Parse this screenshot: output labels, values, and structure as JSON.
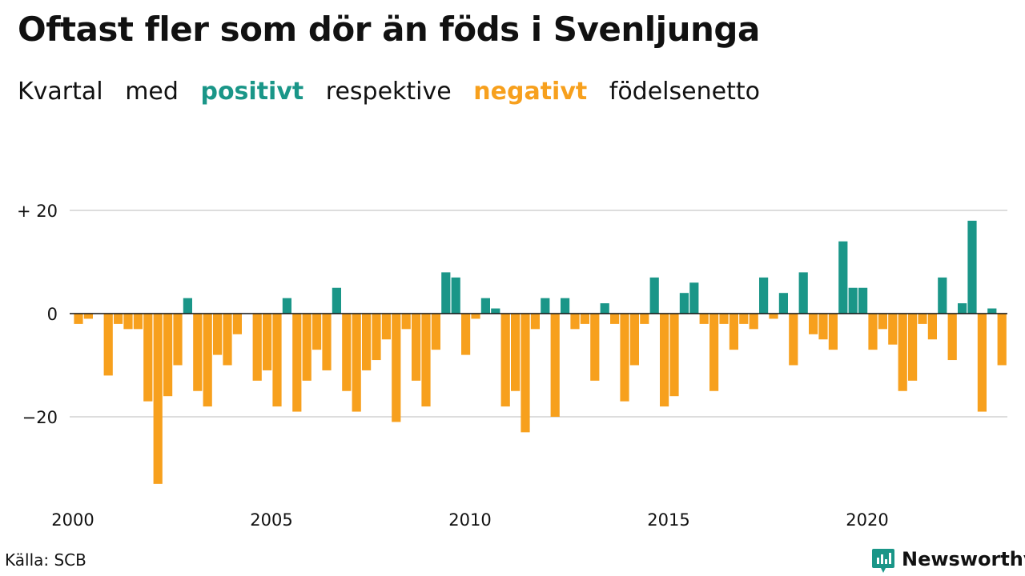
{
  "title": "Oftast fler som dör än föds i Svenljunga",
  "subtitle": {
    "part1": "Kvartal",
    "part2": "med",
    "positive_word": "positivt",
    "part3": "respektive",
    "negative_word": "negativt",
    "part4": "födelsenetto"
  },
  "colors": {
    "positive": "#1a9688",
    "negative": "#f7a01d",
    "grid": "#dddddd",
    "zero_line": "#111111",
    "brand": "#1a9688"
  },
  "source": "Källa: SCB",
  "brand": {
    "name": "Newsworthy",
    "icon": "newsworthy-logo-icon"
  },
  "chart_data": {
    "type": "bar",
    "start_year": 2000,
    "start_quarter": 1,
    "x_tick_labels": [
      "2000",
      "2005",
      "2010",
      "2015",
      "2020"
    ],
    "y_tick_labels": [
      "+ 20",
      "0",
      "−20"
    ],
    "y_ticks": [
      20,
      0,
      -20
    ],
    "ylim": [
      -35,
      22
    ],
    "grid": true,
    "values": [
      -2,
      -1,
      0,
      -12,
      -2,
      -3,
      -3,
      -17,
      -33,
      -16,
      -10,
      3,
      -15,
      -18,
      -8,
      -10,
      -4,
      0,
      -13,
      -11,
      -18,
      3,
      -19,
      -13,
      -7,
      -11,
      5,
      -15,
      -19,
      -11,
      -9,
      -5,
      -21,
      -3,
      -13,
      -18,
      -7,
      8,
      7,
      -8,
      -1,
      3,
      1,
      -18,
      -15,
      -23,
      -3,
      3,
      -20,
      3,
      -3,
      -2,
      -13,
      2,
      -2,
      -17,
      -10,
      -2,
      7,
      -18,
      -16,
      4,
      6,
      -2,
      -15,
      -2,
      -7,
      -2,
      -3,
      7,
      -1,
      4,
      -10,
      8,
      -4,
      -5,
      -7,
      14,
      5,
      5,
      -7,
      -3,
      -6,
      -15,
      -13,
      -2,
      -5,
      7,
      -9,
      2,
      18,
      -19,
      1,
      -10
    ]
  }
}
